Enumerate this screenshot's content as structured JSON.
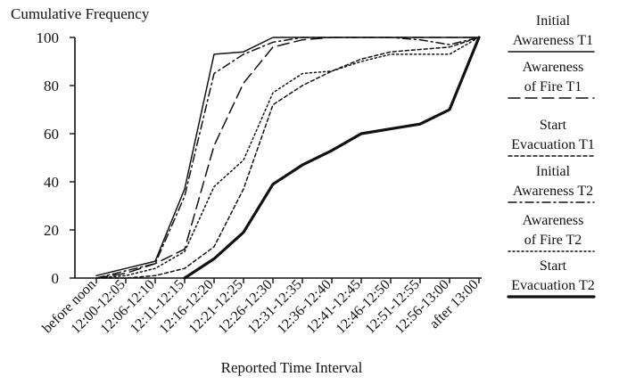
{
  "chart_data": {
    "type": "line",
    "ylabel": "Cumulative Frequency",
    "xlabel": "Reported Time Interval",
    "ylim": [
      0,
      100
    ],
    "yticks": [
      0,
      20,
      40,
      60,
      80,
      100
    ],
    "categories": [
      "before noon",
      "12:00-12:05",
      "12:06-12:10",
      "12:11-12:15",
      "12:16-12:20",
      "12:21-12:25",
      "12:26-12:30",
      "12:31-12:35",
      "12:36-12:40",
      "12:41-12:45",
      "12:46-12:50",
      "12:51-12:55",
      "12:56-13:00",
      "after 13:00"
    ],
    "legend_position": "right",
    "series": [
      {
        "key": "initial_t1",
        "name_lines": [
          "Initial",
          "Awareness T1"
        ],
        "style": "solid",
        "weight": "thin",
        "values": [
          1,
          4,
          7,
          37,
          93,
          94,
          100,
          100,
          100,
          100,
          100,
          100,
          100,
          100
        ]
      },
      {
        "key": "fire_t1",
        "name_lines": [
          "Awareness",
          "of Fire T1"
        ],
        "style": "long-dash",
        "weight": "thin",
        "values": [
          0,
          2,
          6,
          12,
          55,
          81,
          96,
          99,
          100,
          100,
          100,
          100,
          100,
          100
        ]
      },
      {
        "key": "evac_t1",
        "name_lines": [
          "Start",
          "Evacuation T1"
        ],
        "style": "short-dash",
        "weight": "thin",
        "values": [
          0,
          0,
          1,
          4,
          13,
          37,
          72,
          80,
          86,
          91,
          94,
          95,
          96,
          100
        ]
      },
      {
        "key": "initial_t2",
        "name_lines": [
          "Initial",
          "Awareness T2"
        ],
        "style": "dash-dot",
        "weight": "thin",
        "values": [
          0,
          3,
          6,
          34,
          85,
          93,
          98,
          100,
          100,
          100,
          100,
          99,
          97,
          100
        ]
      },
      {
        "key": "fire_t2",
        "name_lines": [
          "Awareness",
          "of Fire T2"
        ],
        "style": "dotted",
        "weight": "thin",
        "values": [
          0,
          1,
          4,
          11,
          38,
          49,
          77,
          85,
          86,
          90,
          93,
          93,
          93,
          100
        ]
      },
      {
        "key": "evac_t2",
        "name_lines": [
          "Start",
          "Evacuation T2"
        ],
        "style": "solid",
        "weight": "thick",
        "values": [
          null,
          null,
          null,
          0,
          8,
          19,
          39,
          47,
          53,
          60,
          62,
          64,
          70,
          100
        ]
      }
    ]
  }
}
